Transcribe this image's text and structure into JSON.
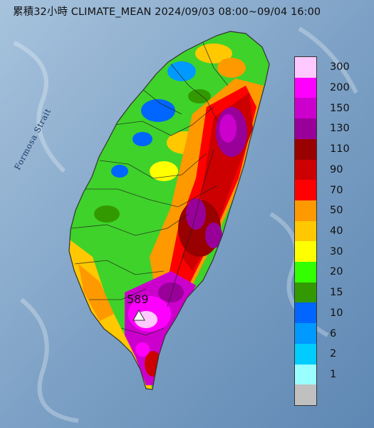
{
  "title": "累積32小時 CLIMATE_MEAN 2024/09/03 08:00~09/04 16:00",
  "sea_label": "Formosa Strait",
  "max_station_value": "589",
  "legend": {
    "items": [
      {
        "label": "300",
        "color": "#ffc8ff"
      },
      {
        "label": "200",
        "color": "#ff00ff"
      },
      {
        "label": "150",
        "color": "#cc00cc"
      },
      {
        "label": "130",
        "color": "#990099"
      },
      {
        "label": "110",
        "color": "#990000"
      },
      {
        "label": "90",
        "color": "#cc0000"
      },
      {
        "label": "70",
        "color": "#ff0000"
      },
      {
        "label": "50",
        "color": "#ff9900"
      },
      {
        "label": "40",
        "color": "#ffc800"
      },
      {
        "label": "30",
        "color": "#ffff00"
      },
      {
        "label": "20",
        "color": "#33ff00"
      },
      {
        "label": "15",
        "color": "#339900"
      },
      {
        "label": "10",
        "color": "#0066ff"
      },
      {
        "label": "6",
        "color": "#0099ff"
      },
      {
        "label": "2",
        "color": "#00ccff"
      },
      {
        "label": "1",
        "color": "#99ffff"
      },
      {
        "label": "",
        "color": "#c0c0c0"
      }
    ]
  }
}
